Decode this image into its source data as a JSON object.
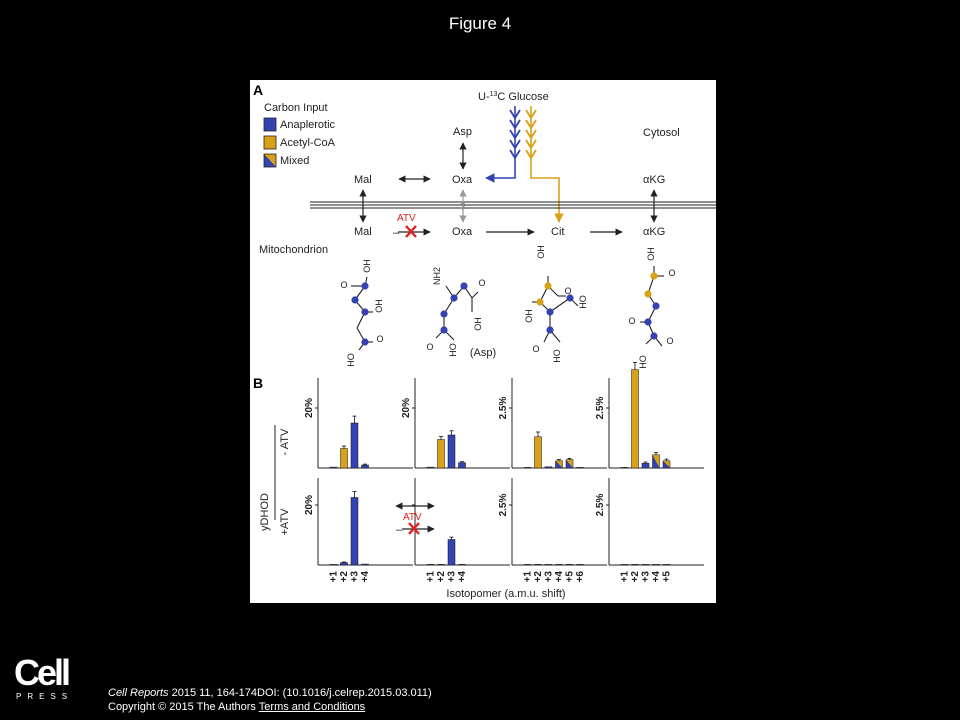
{
  "figure_title": "Figure 4",
  "panel_a": {
    "label": "A",
    "legend_title": "Carbon Input",
    "legend": [
      {
        "label": "Anaplerotic",
        "color": "#3344b0"
      },
      {
        "label": "Acetyl-CoA",
        "color": "#d9a11a"
      },
      {
        "label": "Mixed",
        "color": "mixed"
      }
    ],
    "glucose_label": "U-13C Glucose",
    "cytosol_label": "Cytosol",
    "mitochondrion_label": "Mitochondrion",
    "nodes": {
      "mal_cyto": "Mal",
      "asp": "Asp",
      "oxa_cyto": "Oxa",
      "akg_cyto": "αKG",
      "mal_mito": "Mal",
      "oxa_mito": "Oxa",
      "cit": "Cit",
      "akg_mito": "αKG"
    },
    "question_mark": "?",
    "atv_label": "ATV",
    "minus_sign": "–",
    "structure_labels": {
      "oh": "OH",
      "ho": "HO",
      "nh2": "NH2",
      "o": "O",
      "asp_paren": "(Asp)"
    }
  },
  "panel_b": {
    "label": "B",
    "row_group_label": "yDHOD",
    "row_labels": [
      "- ATV",
      "+ATV"
    ],
    "x_axis_label": "Isotopomer (a.m.u. shift)",
    "atv_label": "ATV",
    "minus_sign": "–",
    "colors": {
      "anaplerotic": "#3344b0",
      "acetyl": "#d9a11a"
    }
  },
  "chart_data": [
    {
      "type": "bar",
      "title": "",
      "row": "- ATV",
      "col": 0,
      "scale_label": "20%",
      "scale_value": 20,
      "categories": [
        "+1",
        "+2",
        "+3",
        "+4"
      ],
      "values": [
        0.3,
        6.5,
        15,
        1
      ],
      "errors": [
        0,
        0.8,
        2.3,
        0.3
      ],
      "colors": [
        "blue",
        "yellow",
        "blue",
        "blue"
      ]
    },
    {
      "type": "bar",
      "title": "",
      "row": "- ATV",
      "col": 1,
      "scale_label": "20%",
      "scale_value": 20,
      "categories": [
        "+1",
        "+2",
        "+3",
        "+4"
      ],
      "values": [
        0.3,
        9.5,
        11,
        1.8
      ],
      "errors": [
        0,
        1,
        1.4,
        0.3
      ],
      "colors": [
        "blue",
        "yellow",
        "blue",
        "blue"
      ]
    },
    {
      "type": "bar",
      "title": "",
      "row": "- ATV",
      "col": 2,
      "scale_label": "2.5%",
      "scale_value": 2.5,
      "categories": [
        "+1",
        "+2",
        "+3",
        "+4",
        "+5",
        "+6"
      ],
      "values": [
        0.02,
        1.3,
        0.05,
        0.3,
        0.35,
        0.02
      ],
      "errors": [
        0,
        0.2,
        0,
        0.05,
        0.05,
        0
      ],
      "colors": [
        "blue",
        "yellow",
        "blue",
        "mixed",
        "mixed",
        "blue"
      ]
    },
    {
      "type": "bar",
      "title": "",
      "row": "- ATV",
      "col": 3,
      "scale_label": "2.5%",
      "scale_value": 2.5,
      "categories": [
        "+1",
        "+2",
        "+3",
        "+4",
        "+5"
      ],
      "values": [
        0.02,
        4.1,
        0.2,
        0.55,
        0.3
      ],
      "errors": [
        0,
        0.3,
        0.05,
        0.1,
        0.07
      ],
      "colors": [
        "blue",
        "yellow",
        "blue",
        "mixed",
        "mixed"
      ]
    },
    {
      "type": "bar",
      "title": "",
      "row": "+ATV",
      "col": 0,
      "scale_label": "20%",
      "scale_value": 20,
      "categories": [
        "+1",
        "+2",
        "+3",
        "+4"
      ],
      "values": [
        0.2,
        0.8,
        22.5,
        0.3
      ],
      "errors": [
        0,
        0.2,
        2,
        0
      ],
      "colors": [
        "blue",
        "blue",
        "blue",
        "blue"
      ]
    },
    {
      "type": "bar",
      "title": "",
      "row": "+ATV",
      "col": 1,
      "scale_label": "",
      "scale_value": 20,
      "categories": [
        "+1",
        "+2",
        "+3",
        "+4"
      ],
      "values": [
        0.1,
        0.2,
        8.5,
        0.2
      ],
      "errors": [
        0,
        0,
        0.8,
        0
      ],
      "colors": [
        "blue",
        "blue",
        "blue",
        "blue"
      ]
    },
    {
      "type": "bar",
      "title": "",
      "row": "+ATV",
      "col": 2,
      "scale_label": "2.5%",
      "scale_value": 2.5,
      "categories": [
        "+1",
        "+2",
        "+3",
        "+4",
        "+5",
        "+6"
      ],
      "values": [
        0.02,
        0.02,
        0.02,
        0.02,
        0.02,
        0.02
      ],
      "errors": [
        0,
        0,
        0,
        0,
        0,
        0
      ],
      "colors": [
        "blue",
        "blue",
        "blue",
        "blue",
        "blue",
        "blue"
      ]
    },
    {
      "type": "bar",
      "title": "",
      "row": "+ATV",
      "col": 3,
      "scale_label": "2.5%",
      "scale_value": 2.5,
      "categories": [
        "+1",
        "+2",
        "+3",
        "+4",
        "+5"
      ],
      "values": [
        0.02,
        0.02,
        0.02,
        0.02,
        0.02
      ],
      "errors": [
        0,
        0,
        0,
        0,
        0
      ],
      "colors": [
        "blue",
        "blue",
        "blue",
        "blue",
        "blue"
      ]
    }
  ],
  "footer": {
    "logo_word": "Cell",
    "logo_sub": "PRESS",
    "journal": "Cell Reports",
    "citation_rest": " 2015 11, 164-174DOI: (10.1016/j.celrep.2015.03.011)",
    "copyright": "Copyright © 2015 The Authors ",
    "terms_link": "Terms and Conditions"
  }
}
